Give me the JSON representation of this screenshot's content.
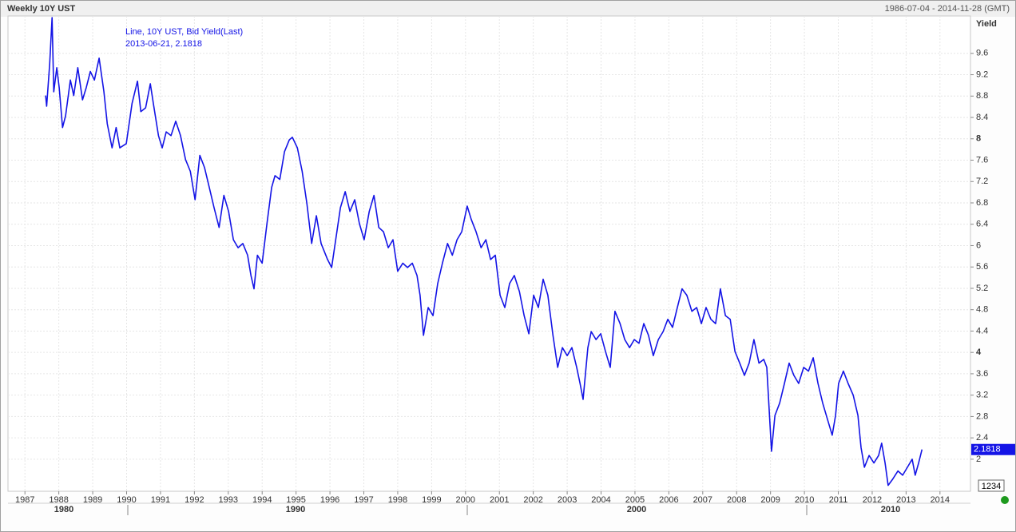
{
  "chart_data": {
    "type": "line",
    "title": "Weekly 10Y UST",
    "date_range": "1986-07-04 - 2014-11-28 (GMT)",
    "y_label": "Yield",
    "annotation": [
      "Line, 10Y UST, Bid Yield(Last)",
      "2013-06-21, 2.1818"
    ],
    "last_label": "2.1818",
    "corner_label": "1234",
    "x_major_labels": [
      "1980",
      "1990",
      "2000",
      "2010"
    ],
    "color": "#1414e6",
    "grid": true,
    "xlim": [
      1986.5,
      2014.9
    ],
    "ylim": [
      1.4,
      10.3
    ],
    "xticks": [
      1987,
      1988,
      1989,
      1990,
      1991,
      1992,
      1993,
      1994,
      1995,
      1996,
      1997,
      1998,
      1999,
      2000,
      2001,
      2002,
      2003,
      2004,
      2005,
      2006,
      2007,
      2008,
      2009,
      2010,
      2011,
      2012,
      2013,
      2014
    ],
    "yticks": [
      2,
      2.4,
      2.8,
      3.2,
      3.6,
      4,
      4.4,
      4.8,
      5.2,
      5.6,
      6,
      6.4,
      6.8,
      7.2,
      7.6,
      8,
      8.4,
      8.8,
      9.2,
      9.6
    ],
    "x": [
      1987.61,
      1987.64,
      1987.73,
      1987.8,
      1987.85,
      1987.94,
      1988.01,
      1988.11,
      1988.2,
      1988.34,
      1988.44,
      1988.56,
      1988.7,
      1988.81,
      1988.93,
      1989.05,
      1989.19,
      1989.33,
      1989.43,
      1989.57,
      1989.69,
      1989.8,
      1989.99,
      1990.16,
      1990.32,
      1990.42,
      1990.56,
      1990.7,
      1990.79,
      1990.94,
      1991.05,
      1991.17,
      1991.31,
      1991.45,
      1991.59,
      1991.74,
      1991.88,
      1992.02,
      1992.16,
      1992.3,
      1992.44,
      1992.58,
      1992.73,
      1992.87,
      1993.01,
      1993.15,
      1993.29,
      1993.43,
      1993.57,
      1993.67,
      1993.76,
      1993.86,
      1994.0,
      1994.14,
      1994.28,
      1994.38,
      1994.52,
      1994.66,
      1994.8,
      1994.89,
      1995.04,
      1995.18,
      1995.32,
      1995.46,
      1995.6,
      1995.74,
      1995.93,
      1996.05,
      1996.17,
      1996.31,
      1996.45,
      1996.59,
      1996.73,
      1996.87,
      1997.01,
      1997.16,
      1997.3,
      1997.44,
      1997.58,
      1997.72,
      1997.86,
      1998.0,
      1998.15,
      1998.29,
      1998.43,
      1998.57,
      1998.66,
      1998.76,
      1998.9,
      1999.04,
      1999.18,
      1999.32,
      1999.47,
      1999.61,
      1999.75,
      1999.89,
      2000.05,
      2000.17,
      2000.31,
      2000.46,
      2000.6,
      2000.74,
      2000.88,
      2001.02,
      2001.16,
      2001.3,
      2001.44,
      2001.59,
      2001.73,
      2001.87,
      2002.01,
      2002.15,
      2002.29,
      2002.43,
      2002.58,
      2002.72,
      2002.86,
      2003.0,
      2003.14,
      2003.28,
      2003.38,
      2003.47,
      2003.61,
      2003.71,
      2003.85,
      2003.99,
      2004.13,
      2004.27,
      2004.41,
      2004.56,
      2004.7,
      2004.84,
      2004.98,
      2005.12,
      2005.26,
      2005.4,
      2005.54,
      2005.69,
      2005.83,
      2005.97,
      2006.11,
      2006.25,
      2006.39,
      2006.53,
      2006.68,
      2006.82,
      2006.96,
      2007.1,
      2007.24,
      2007.38,
      2007.52,
      2007.67,
      2007.81,
      2007.95,
      2008.09,
      2008.23,
      2008.37,
      2008.51,
      2008.66,
      2008.8,
      2008.89,
      2009.03,
      2009.13,
      2009.27,
      2009.41,
      2009.55,
      2009.69,
      2009.83,
      2009.98,
      2010.12,
      2010.26,
      2010.4,
      2010.54,
      2010.68,
      2010.82,
      2010.92,
      2011.01,
      2011.15,
      2011.29,
      2011.44,
      2011.58,
      2011.67,
      2011.77,
      2011.91,
      2012.05,
      2012.19,
      2012.28,
      2012.38,
      2012.47,
      2012.61,
      2012.76,
      2012.9,
      2013.04,
      2013.18,
      2013.27,
      2013.37,
      2013.47
    ],
    "values": [
      8.81,
      8.61,
      9.4,
      10.27,
      8.88,
      9.33,
      8.96,
      8.21,
      8.43,
      9.1,
      8.81,
      9.33,
      8.73,
      8.96,
      9.26,
      9.1,
      9.51,
      8.88,
      8.28,
      7.83,
      8.21,
      7.83,
      7.91,
      8.66,
      9.08,
      8.51,
      8.58,
      9.03,
      8.66,
      8.06,
      7.83,
      8.13,
      8.06,
      8.33,
      8.06,
      7.61,
      7.39,
      6.86,
      7.69,
      7.46,
      7.09,
      6.71,
      6.34,
      6.94,
      6.64,
      6.11,
      5.96,
      6.04,
      5.82,
      5.44,
      5.19,
      5.82,
      5.67,
      6.41,
      7.09,
      7.31,
      7.24,
      7.76,
      7.98,
      8.03,
      7.83,
      7.39,
      6.79,
      6.04,
      6.56,
      6.04,
      5.74,
      5.59,
      6.11,
      6.71,
      7.01,
      6.64,
      6.86,
      6.41,
      6.11,
      6.64,
      6.94,
      6.34,
      6.26,
      5.96,
      6.11,
      5.52,
      5.67,
      5.59,
      5.67,
      5.44,
      5.07,
      4.32,
      4.84,
      4.69,
      5.29,
      5.67,
      6.04,
      5.82,
      6.11,
      6.26,
      6.74,
      6.49,
      6.26,
      5.96,
      6.11,
      5.74,
      5.82,
      5.07,
      4.84,
      5.29,
      5.44,
      5.14,
      4.69,
      4.35,
      5.07,
      4.84,
      5.37,
      5.07,
      4.32,
      3.72,
      4.09,
      3.94,
      4.09,
      3.72,
      3.42,
      3.12,
      4.09,
      4.39,
      4.24,
      4.35,
      4.02,
      3.72,
      4.77,
      4.54,
      4.24,
      4.09,
      4.24,
      4.17,
      4.54,
      4.32,
      3.94,
      4.24,
      4.39,
      4.62,
      4.47,
      4.84,
      5.19,
      5.07,
      4.77,
      4.84,
      4.54,
      4.84,
      4.62,
      4.54,
      5.19,
      4.69,
      4.62,
      4.02,
      3.8,
      3.57,
      3.8,
      4.24,
      3.8,
      3.87,
      3.72,
      2.15,
      2.82,
      3.05,
      3.42,
      3.8,
      3.57,
      3.42,
      3.72,
      3.65,
      3.9,
      3.42,
      3.05,
      2.75,
      2.45,
      2.82,
      3.42,
      3.65,
      3.42,
      3.2,
      2.82,
      2.22,
      1.85,
      2.07,
      1.93,
      2.07,
      2.3,
      1.93,
      1.51,
      1.63,
      1.78,
      1.7,
      1.85,
      2.0,
      1.7,
      1.93,
      2.1818
    ]
  }
}
